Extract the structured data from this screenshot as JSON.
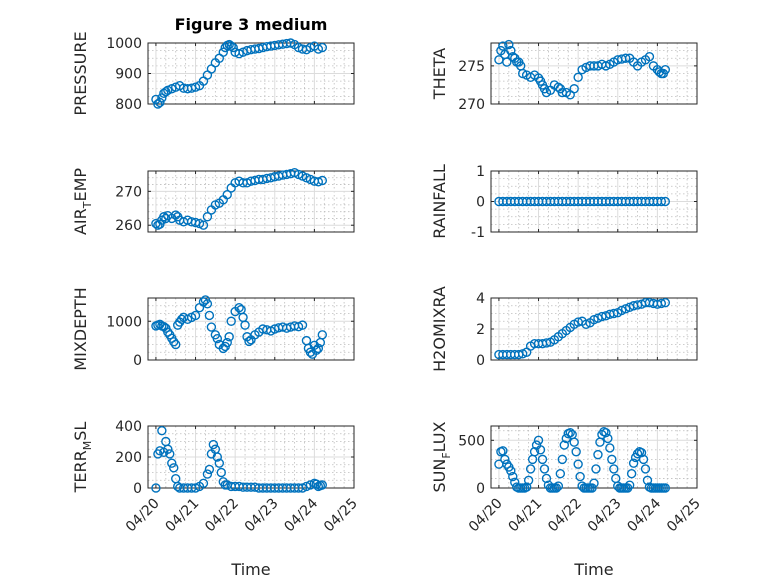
{
  "figure": {
    "title": "Figure 3 medium",
    "marker_color": "#0072BD",
    "x_tick_labels": [
      "04/20",
      "04/21",
      "04/22",
      "04/23",
      "04/24",
      "04/25"
    ],
    "xlabel": "Time"
  },
  "chart_data": [
    {
      "type": "scatter",
      "id": "pressure",
      "ylabel": "PRESSURE",
      "ylim": [
        800,
        1000
      ],
      "yticks": [
        800,
        900,
        1000
      ],
      "ytick_labels": [
        "800",
        "900",
        "1000"
      ],
      "minor_y": [
        825,
        850,
        875,
        925,
        950,
        975
      ],
      "x": [
        0.0,
        0.05,
        0.1,
        0.15,
        0.2,
        0.25,
        0.3,
        0.4,
        0.5,
        0.6,
        0.7,
        0.8,
        0.9,
        1.0,
        1.1,
        1.2,
        1.3,
        1.4,
        1.5,
        1.6,
        1.7,
        1.75,
        1.8,
        1.85,
        1.9,
        1.95,
        2.0,
        2.1,
        2.2,
        2.3,
        2.4,
        2.5,
        2.6,
        2.7,
        2.8,
        2.9,
        3.0,
        3.1,
        3.2,
        3.3,
        3.4,
        3.5,
        3.6,
        3.7,
        3.8,
        3.9,
        4.0,
        4.1,
        4.2
      ],
      "y": [
        815,
        800,
        805,
        820,
        835,
        840,
        845,
        850,
        855,
        860,
        852,
        850,
        852,
        855,
        860,
        875,
        895,
        915,
        935,
        950,
        970,
        985,
        992,
        995,
        990,
        985,
        970,
        965,
        970,
        975,
        978,
        980,
        982,
        985,
        988,
        990,
        992,
        994,
        996,
        998,
        1000,
        995,
        985,
        980,
        978,
        985,
        990,
        980,
        985
      ]
    },
    {
      "type": "scatter",
      "id": "theta",
      "ylabel": "THETA",
      "ylim": [
        270,
        278
      ],
      "yticks": [
        270,
        275
      ],
      "ytick_labels": [
        "270",
        "275"
      ],
      "minor_y": [
        271,
        272,
        273,
        274,
        276,
        277
      ],
      "x": [
        0.0,
        0.05,
        0.1,
        0.15,
        0.2,
        0.25,
        0.3,
        0.35,
        0.4,
        0.45,
        0.5,
        0.55,
        0.6,
        0.7,
        0.8,
        0.9,
        1.0,
        1.05,
        1.1,
        1.15,
        1.2,
        1.3,
        1.4,
        1.5,
        1.55,
        1.6,
        1.7,
        1.8,
        1.9,
        2.0,
        2.1,
        2.2,
        2.3,
        2.4,
        2.5,
        2.6,
        2.7,
        2.8,
        2.9,
        3.0,
        3.1,
        3.2,
        3.3,
        3.4,
        3.5,
        3.6,
        3.7,
        3.8,
        3.9,
        4.0,
        4.05,
        4.1,
        4.15,
        4.2
      ],
      "y": [
        275.8,
        277.0,
        277.6,
        276.5,
        275.5,
        277.8,
        277.0,
        276.2,
        276.0,
        275.5,
        275.5,
        275.0,
        274.0,
        273.8,
        273.5,
        273.8,
        273.4,
        273.0,
        272.5,
        272.0,
        271.5,
        271.8,
        272.5,
        272.2,
        272.0,
        271.5,
        271.5,
        271.2,
        272.0,
        273.5,
        274.5,
        274.8,
        275.0,
        275.0,
        275.0,
        275.2,
        275.0,
        275.2,
        275.5,
        275.8,
        275.9,
        276.0,
        276.0,
        275.5,
        275.0,
        275.5,
        275.8,
        276.2,
        275.0,
        274.5,
        274.2,
        274.0,
        274.0,
        274.5
      ]
    },
    {
      "type": "scatter",
      "id": "air_temp",
      "ylabel": "AIR_TEMP",
      "ylim": [
        258,
        276
      ],
      "yticks": [
        260,
        270
      ],
      "ytick_labels": [
        "260",
        "270"
      ],
      "minor_y": [
        262,
        264,
        266,
        268,
        272,
        274
      ],
      "x": [
        0.0,
        0.05,
        0.1,
        0.15,
        0.2,
        0.25,
        0.3,
        0.4,
        0.5,
        0.55,
        0.6,
        0.7,
        0.8,
        0.9,
        1.0,
        1.1,
        1.2,
        1.3,
        1.4,
        1.5,
        1.6,
        1.7,
        1.8,
        1.9,
        2.0,
        2.1,
        2.2,
        2.3,
        2.4,
        2.5,
        2.6,
        2.7,
        2.8,
        2.9,
        3.0,
        3.1,
        3.2,
        3.3,
        3.4,
        3.5,
        3.6,
        3.7,
        3.8,
        3.9,
        4.0,
        4.1,
        4.2
      ],
      "y": [
        260.5,
        260.0,
        260.3,
        261.5,
        262.5,
        262.0,
        262.8,
        262.0,
        263.0,
        262.5,
        261.5,
        261.0,
        261.5,
        261.0,
        260.8,
        260.5,
        260.0,
        262.5,
        264.5,
        266.0,
        266.5,
        267.5,
        269.0,
        271.0,
        272.5,
        273.0,
        272.5,
        272.5,
        273.0,
        273.2,
        273.5,
        273.5,
        273.8,
        274.0,
        274.3,
        274.5,
        274.8,
        275.0,
        275.2,
        275.5,
        275.0,
        274.5,
        274.0,
        273.5,
        273.0,
        272.8,
        273.2
      ]
    },
    {
      "type": "scatter",
      "id": "rainfall",
      "ylabel": "RAINFALL",
      "ylim": [
        -1,
        1
      ],
      "yticks": [
        -1,
        0,
        1
      ],
      "ytick_labels": [
        "-1",
        "0",
        "1"
      ],
      "minor_y": [
        -0.75,
        -0.5,
        -0.25,
        0.25,
        0.5,
        0.75
      ],
      "x": [
        0.0,
        0.1,
        0.2,
        0.3,
        0.4,
        0.5,
        0.6,
        0.7,
        0.8,
        0.9,
        1.0,
        1.1,
        1.2,
        1.3,
        1.4,
        1.5,
        1.6,
        1.7,
        1.8,
        1.9,
        2.0,
        2.1,
        2.2,
        2.3,
        2.4,
        2.5,
        2.6,
        2.7,
        2.8,
        2.9,
        3.0,
        3.1,
        3.2,
        3.3,
        3.4,
        3.5,
        3.6,
        3.7,
        3.8,
        3.9,
        4.0,
        4.1,
        4.2
      ],
      "y": [
        0,
        0,
        0,
        0,
        0,
        0,
        0,
        0,
        0,
        0,
        0,
        0,
        0,
        0,
        0,
        0,
        0,
        0,
        0,
        0,
        0,
        0,
        0,
        0,
        0,
        0,
        0,
        0,
        0,
        0,
        0,
        0,
        0,
        0,
        0,
        0,
        0,
        0,
        0,
        0,
        0,
        0,
        0
      ]
    },
    {
      "type": "scatter",
      "id": "mixdepth",
      "ylabel": "MIXDEPTH",
      "ylim": [
        0,
        1600
      ],
      "yticks": [
        0,
        1000
      ],
      "ytick_labels": [
        "0",
        "1000"
      ],
      "minor_y": [
        200,
        400,
        600,
        800,
        1200,
        1400
      ],
      "x": [
        0.0,
        0.05,
        0.1,
        0.15,
        0.2,
        0.25,
        0.3,
        0.35,
        0.4,
        0.45,
        0.5,
        0.55,
        0.6,
        0.65,
        0.7,
        0.8,
        0.9,
        1.0,
        1.1,
        1.2,
        1.25,
        1.3,
        1.35,
        1.4,
        1.5,
        1.55,
        1.6,
        1.7,
        1.75,
        1.8,
        1.85,
        1.9,
        2.0,
        2.1,
        2.15,
        2.2,
        2.25,
        2.3,
        2.35,
        2.4,
        2.5,
        2.6,
        2.7,
        2.8,
        2.9,
        3.0,
        3.1,
        3.2,
        3.3,
        3.4,
        3.5,
        3.6,
        3.7,
        3.8,
        3.85,
        3.9,
        3.95,
        4.0,
        4.05,
        4.1,
        4.15,
        4.2
      ],
      "y": [
        880,
        900,
        920,
        880,
        860,
        820,
        720,
        650,
        560,
        470,
        400,
        900,
        980,
        1050,
        1100,
        1050,
        1100,
        1150,
        1350,
        1500,
        1550,
        1450,
        1150,
        850,
        650,
        550,
        400,
        300,
        350,
        450,
        600,
        1000,
        1250,
        1350,
        1300,
        1100,
        900,
        600,
        480,
        520,
        650,
        720,
        800,
        780,
        750,
        800,
        830,
        850,
        820,
        850,
        880,
        860,
        900,
        500,
        300,
        200,
        150,
        380,
        250,
        300,
        450,
        650
      ]
    },
    {
      "type": "scatter",
      "id": "h2omixra",
      "ylabel": "H2OMIXRA",
      "ylim": [
        0,
        4
      ],
      "yticks": [
        0,
        2,
        4
      ],
      "ytick_labels": [
        "0",
        "2",
        "4"
      ],
      "minor_y": [
        0.5,
        1,
        1.5,
        2.5,
        3,
        3.5
      ],
      "x": [
        0.0,
        0.1,
        0.2,
        0.3,
        0.4,
        0.5,
        0.6,
        0.7,
        0.8,
        0.9,
        1.0,
        1.1,
        1.2,
        1.3,
        1.4,
        1.5,
        1.6,
        1.7,
        1.8,
        1.9,
        2.0,
        2.1,
        2.2,
        2.3,
        2.4,
        2.5,
        2.6,
        2.7,
        2.8,
        2.9,
        3.0,
        3.1,
        3.2,
        3.3,
        3.4,
        3.5,
        3.6,
        3.7,
        3.8,
        3.9,
        4.0,
        4.1,
        4.2
      ],
      "y": [
        0.35,
        0.35,
        0.35,
        0.35,
        0.35,
        0.35,
        0.4,
        0.5,
        0.9,
        1.05,
        1.05,
        1.05,
        1.1,
        1.15,
        1.3,
        1.5,
        1.7,
        1.9,
        2.1,
        2.3,
        2.45,
        2.5,
        2.3,
        2.4,
        2.6,
        2.7,
        2.8,
        2.85,
        2.95,
        3.0,
        3.05,
        3.2,
        3.3,
        3.4,
        3.5,
        3.55,
        3.6,
        3.7,
        3.7,
        3.65,
        3.6,
        3.65,
        3.7
      ]
    },
    {
      "type": "scatter",
      "id": "terr_msl",
      "ylabel": "TERR_MSL",
      "ylim": [
        0,
        400
      ],
      "yticks": [
        0,
        200,
        400
      ],
      "ytick_labels": [
        "0",
        "200",
        "400"
      ],
      "minor_y": [
        50,
        100,
        150,
        250,
        300,
        350
      ],
      "x": [
        0.0,
        0.05,
        0.1,
        0.15,
        0.2,
        0.25,
        0.3,
        0.35,
        0.4,
        0.45,
        0.5,
        0.55,
        0.6,
        0.7,
        0.8,
        0.9,
        1.0,
        1.1,
        1.2,
        1.3,
        1.35,
        1.4,
        1.45,
        1.5,
        1.55,
        1.6,
        1.65,
        1.7,
        1.75,
        1.8,
        1.9,
        2.0,
        2.1,
        2.2,
        2.3,
        2.4,
        2.5,
        2.6,
        2.7,
        2.8,
        2.9,
        3.0,
        3.1,
        3.2,
        3.3,
        3.4,
        3.5,
        3.6,
        3.7,
        3.8,
        3.9,
        4.0,
        4.05,
        4.1,
        4.15,
        4.2
      ],
      "y": [
        0,
        220,
        240,
        370,
        230,
        300,
        250,
        220,
        160,
        130,
        60,
        10,
        0,
        0,
        0,
        0,
        0,
        10,
        30,
        90,
        120,
        220,
        280,
        250,
        200,
        160,
        100,
        40,
        20,
        20,
        10,
        10,
        10,
        5,
        5,
        5,
        5,
        0,
        0,
        0,
        0,
        0,
        0,
        0,
        0,
        0,
        0,
        0,
        0,
        10,
        20,
        30,
        25,
        10,
        15,
        20
      ]
    },
    {
      "type": "scatter",
      "id": "sun_flux",
      "ylabel": "SUN_FLUX",
      "ylim": [
        0,
        650
      ],
      "yticks": [
        0,
        500
      ],
      "ytick_labels": [
        "0",
        "500"
      ],
      "minor_y": [
        100,
        200,
        300,
        400,
        600
      ],
      "x": [
        0.0,
        0.05,
        0.1,
        0.15,
        0.2,
        0.25,
        0.3,
        0.35,
        0.4,
        0.45,
        0.5,
        0.55,
        0.6,
        0.65,
        0.7,
        0.75,
        0.8,
        0.85,
        0.9,
        0.95,
        1.0,
        1.05,
        1.1,
        1.15,
        1.2,
        1.25,
        1.3,
        1.35,
        1.4,
        1.45,
        1.5,
        1.55,
        1.6,
        1.65,
        1.7,
        1.75,
        1.8,
        1.85,
        1.9,
        1.95,
        2.0,
        2.05,
        2.1,
        2.15,
        2.2,
        2.25,
        2.3,
        2.35,
        2.4,
        2.45,
        2.5,
        2.55,
        2.6,
        2.65,
        2.7,
        2.75,
        2.8,
        2.85,
        2.9,
        2.95,
        3.0,
        3.05,
        3.1,
        3.15,
        3.2,
        3.25,
        3.3,
        3.35,
        3.4,
        3.45,
        3.5,
        3.55,
        3.6,
        3.65,
        3.7,
        3.75,
        3.8,
        3.85,
        3.9,
        3.95,
        4.0,
        4.05,
        4.1,
        4.15,
        4.2
      ],
      "y": [
        250,
        380,
        390,
        300,
        250,
        220,
        180,
        120,
        60,
        10,
        0,
        0,
        0,
        0,
        10,
        80,
        200,
        300,
        380,
        450,
        500,
        400,
        300,
        200,
        100,
        30,
        0,
        0,
        0,
        0,
        20,
        150,
        300,
        450,
        520,
        570,
        580,
        560,
        480,
        380,
        250,
        120,
        20,
        0,
        0,
        0,
        0,
        0,
        50,
        200,
        350,
        480,
        560,
        590,
        580,
        520,
        420,
        300,
        200,
        100,
        20,
        0,
        0,
        0,
        0,
        0,
        30,
        150,
        260,
        320,
        360,
        380,
        370,
        300,
        200,
        80,
        10,
        0,
        0,
        0,
        0,
        0,
        0,
        0,
        0
      ]
    }
  ]
}
